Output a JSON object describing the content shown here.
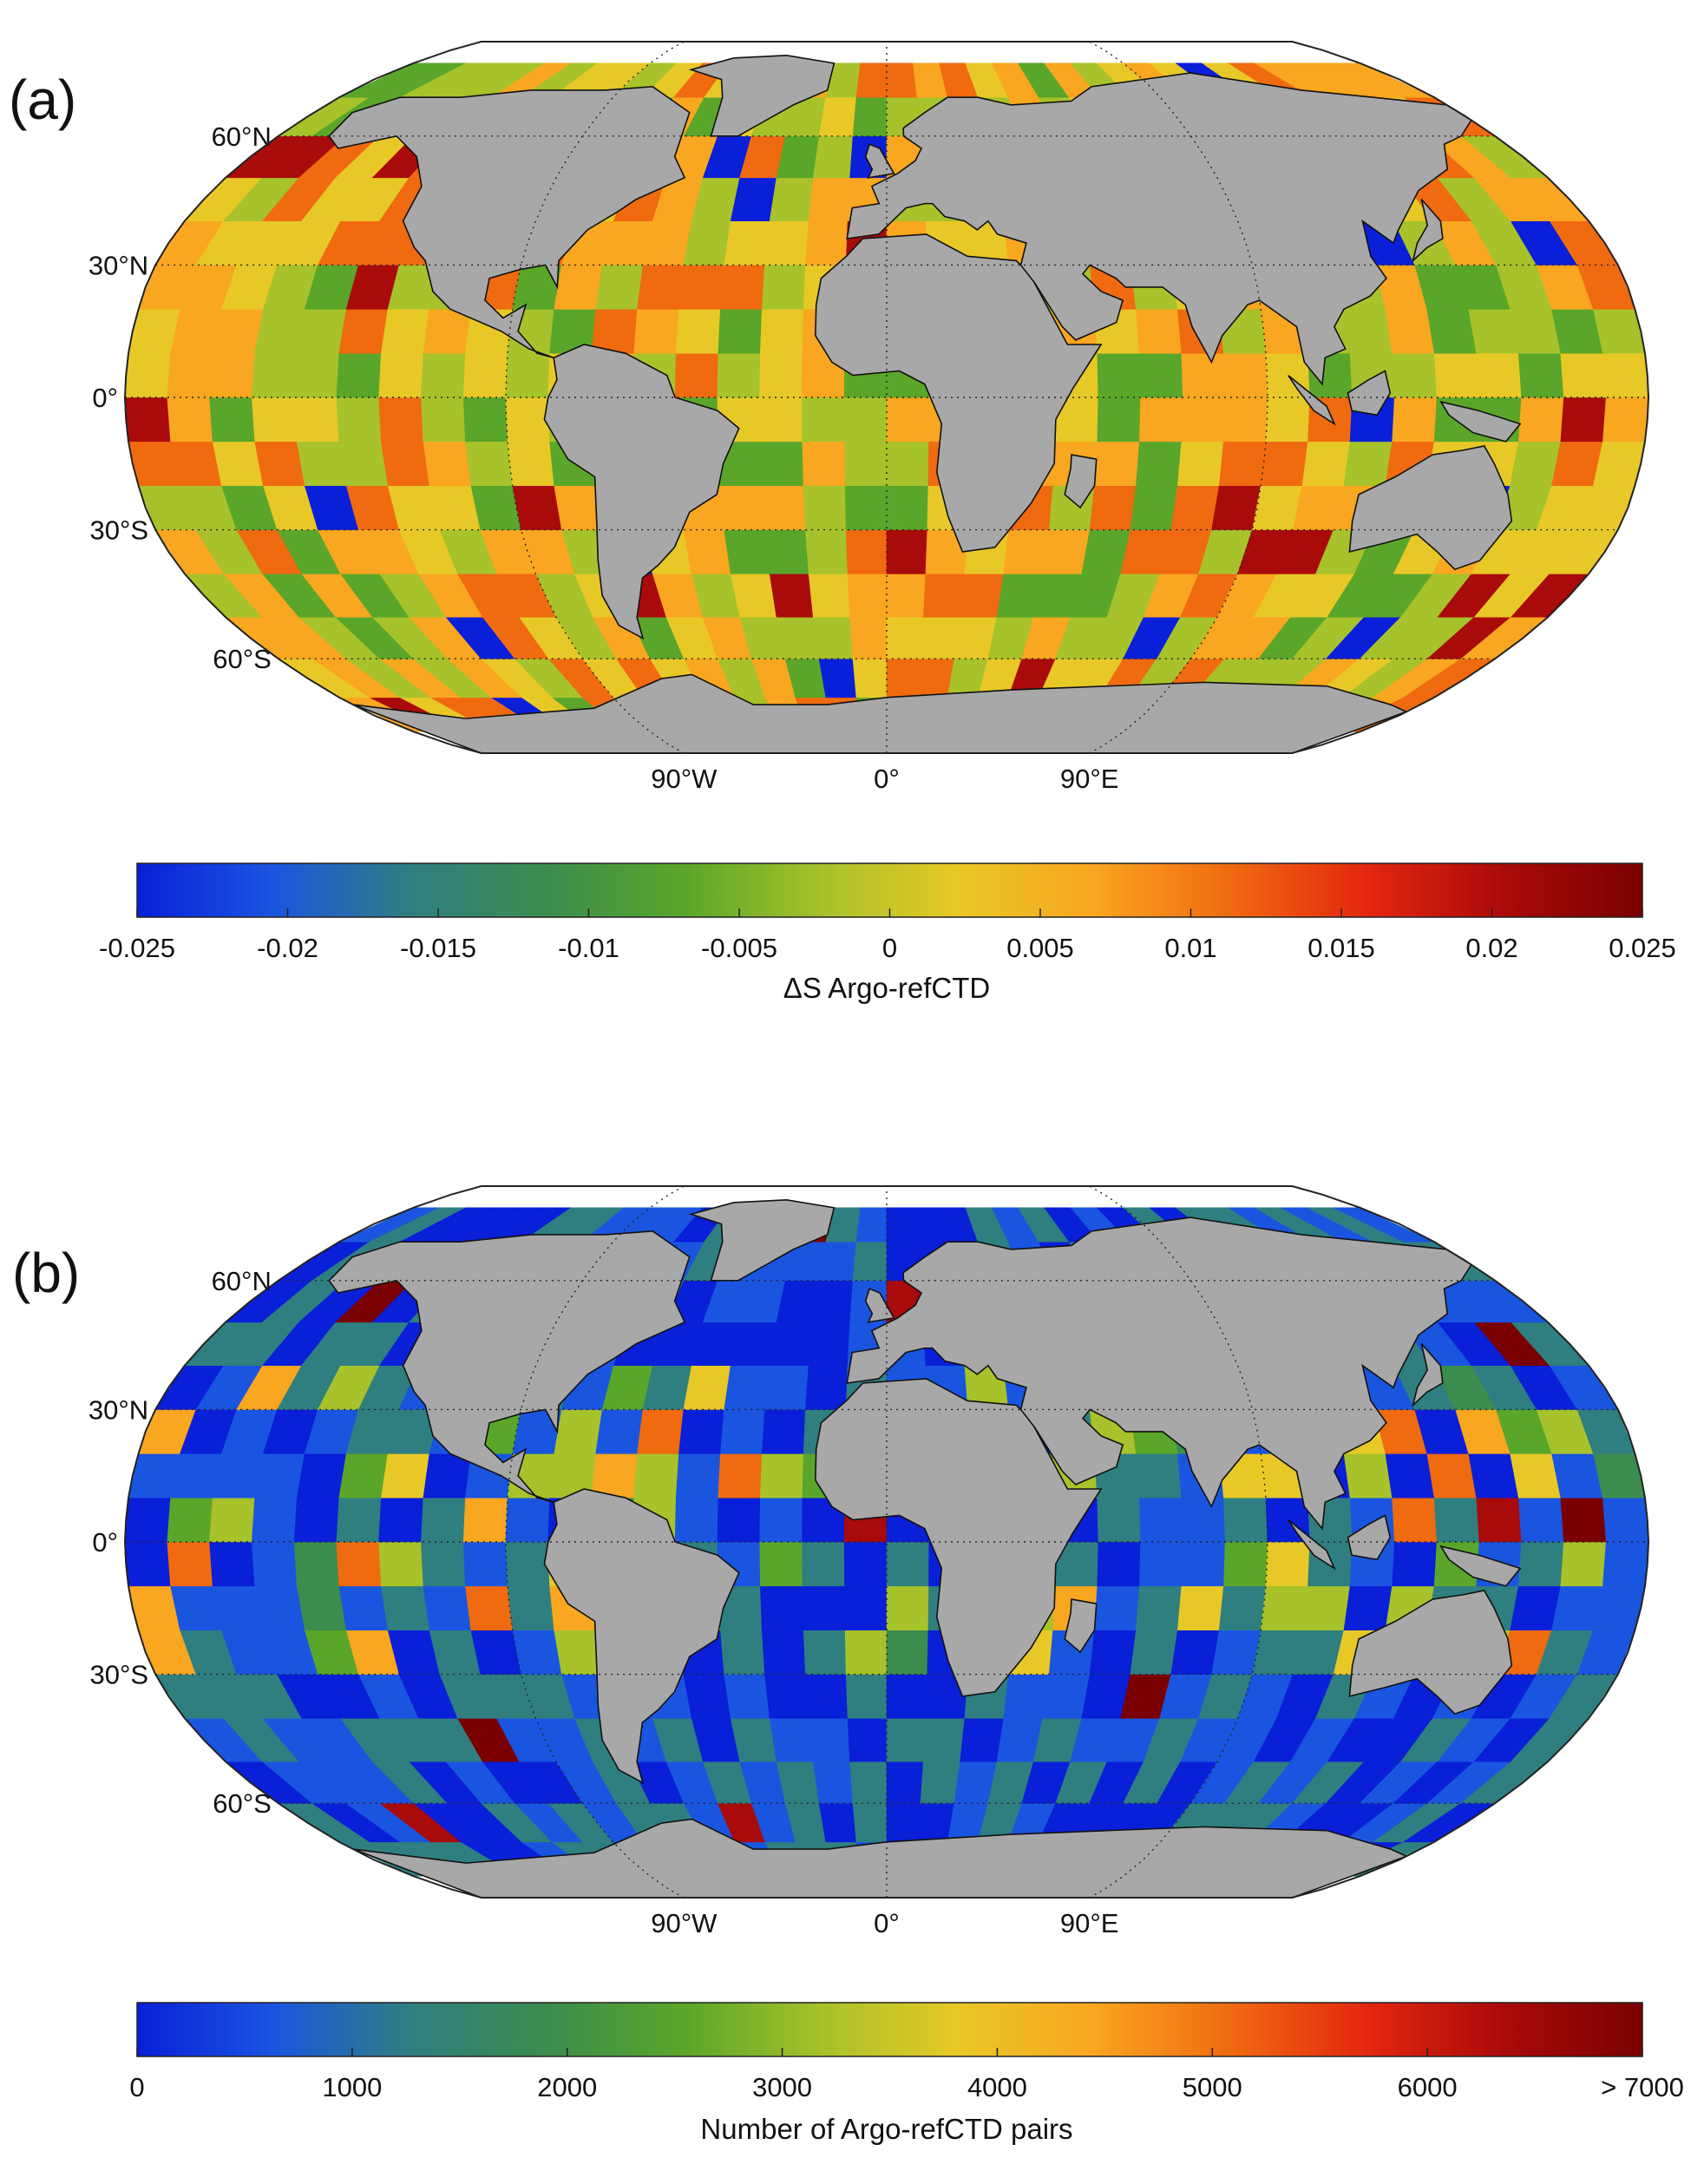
{
  "panels": [
    {
      "label": "(a)",
      "lat_labels": [
        "60°N",
        "30°N",
        "0°",
        "30°S",
        "60°S"
      ],
      "lon_labels": [
        "90°W",
        "0°",
        "90°E"
      ],
      "colorbar": {
        "ticks": [
          "-0.025",
          "-0.02",
          "-0.015",
          "-0.01",
          "-0.005",
          "0",
          "0.005",
          "0.01",
          "0.015",
          "0.02",
          "0.025"
        ],
        "title": "ΔS Argo-refCTD",
        "range": [
          -0.025,
          0.025
        ]
      }
    },
    {
      "label": "(b)",
      "lat_labels": [
        "60°N",
        "30°N",
        "0°",
        "30°S",
        "60°S"
      ],
      "lon_labels": [
        "90°W",
        "0°",
        "90°E"
      ],
      "colorbar": {
        "ticks": [
          "0",
          "1000",
          "2000",
          "3000",
          "4000",
          "5000",
          "6000",
          "> 7000"
        ],
        "title": "Number of Argo-refCTD pairs",
        "range": [
          0,
          7000
        ]
      }
    }
  ],
  "colors": {
    "land": "#a8a8a8",
    "missing": "#ffffff",
    "grid": "#222222",
    "colormap": [
      "#0a1fd8",
      "#1a55e0",
      "#2f7f80",
      "#3c8c4e",
      "#5aa62a",
      "#a7c22a",
      "#e8c827",
      "#f9a620",
      "#f06a10",
      "#e3260f",
      "#a90a0a",
      "#7a0000"
    ]
  }
}
